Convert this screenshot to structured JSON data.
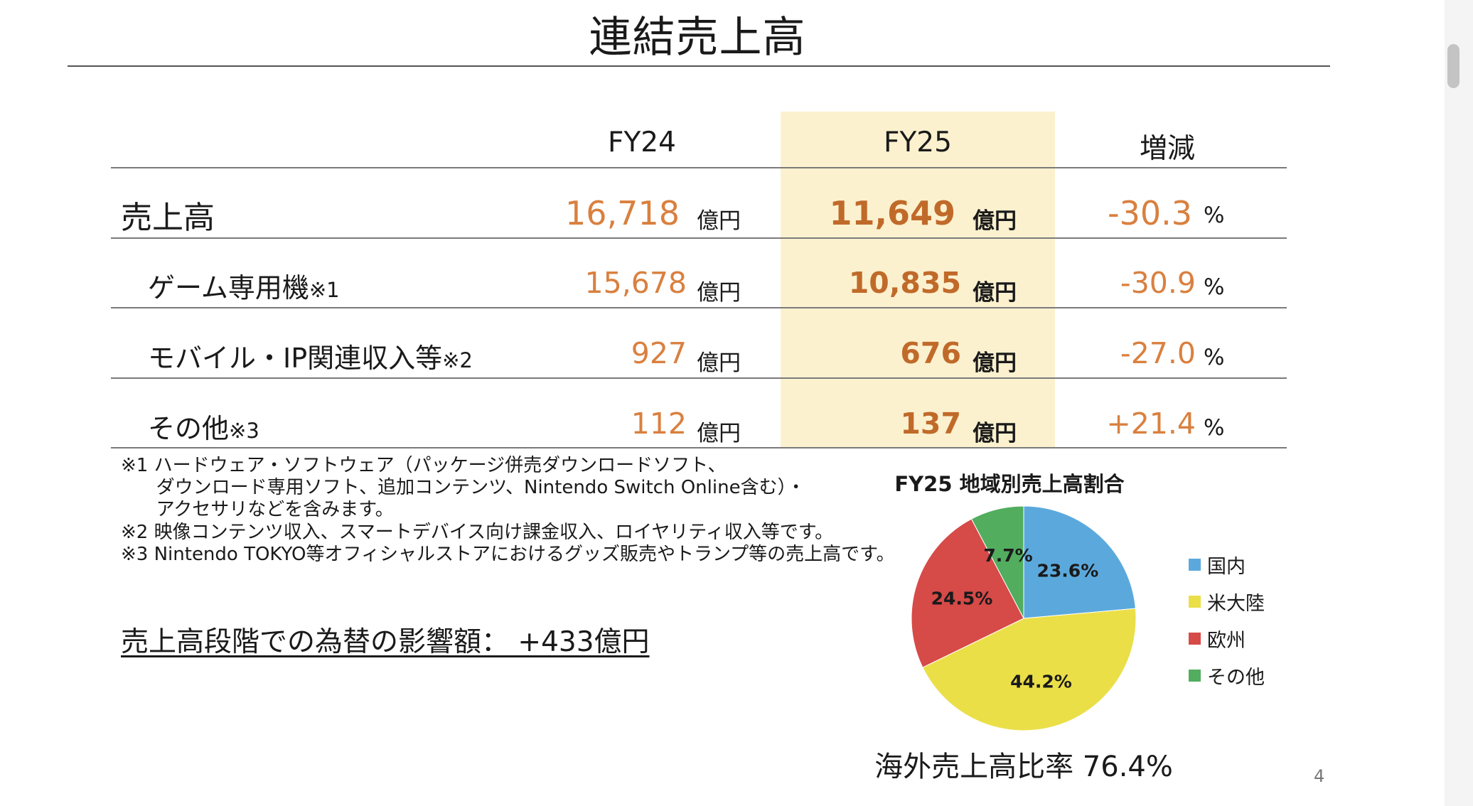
{
  "title": "連結売上高",
  "table": {
    "headers": {
      "fy24": "FY24",
      "fy25": "FY25",
      "change": "増減"
    },
    "rows": [
      {
        "label": "売上高",
        "note": "",
        "fy24": "16,718",
        "fy24_unit": "億円",
        "fy25": "11,649",
        "fy25_unit": "億円",
        "change": "-30.3",
        "change_unit": "%"
      },
      {
        "label": "ゲーム専用機",
        "note": "※1",
        "fy24": "15,678",
        "fy24_unit": "億円",
        "fy25": "10,835",
        "fy25_unit": "億円",
        "change": "-30.9",
        "change_unit": "%"
      },
      {
        "label": "モバイル・IP関連収入等",
        "note": "※2",
        "fy24": "927",
        "fy24_unit": "億円",
        "fy25": "676",
        "fy25_unit": "億円",
        "change": "-27.0",
        "change_unit": "%"
      },
      {
        "label": "その他",
        "note": "※3",
        "fy24": "112",
        "fy24_unit": "億円",
        "fy25": "137",
        "fy25_unit": "億円",
        "change": "+21.4",
        "change_unit": "%"
      }
    ]
  },
  "footnotes": [
    "※1 ハードウェア・ソフトウェア（パッケージ併売ダウンロードソフト、",
    "      ダウンロード専用ソフト、追加コンテンツ、Nintendo Switch Online含む）・",
    "      アクセサリなどを含みます。",
    "※2 映像コンテンツ収入、スマートデバイス向け課金収入、ロイヤリティ収入等です。",
    "※3 Nintendo TOKYO等オフィシャルストアにおけるグッズ販売やトランプ等の売上高です。"
  ],
  "fx_impact": "売上高段階での為替の影響額：  +433億円",
  "overseas_ratio": "海外売上高比率 76.4%",
  "page_number": "4",
  "colors": {
    "accent_orange": "#d9803f",
    "fy25_dark": "#c06a2a",
    "fy25_band": "#fcf1cf"
  },
  "chart_data": {
    "type": "pie",
    "title": "FY25 地域別売上高割合",
    "categories": [
      "国内",
      "米大陸",
      "欧州",
      "その他"
    ],
    "values": [
      23.6,
      44.2,
      24.5,
      7.7
    ],
    "labels": [
      "23.6%",
      "44.2%",
      "24.5%",
      "7.7%"
    ],
    "colors": [
      "#5ba9dc",
      "#ebdf48",
      "#d64a48",
      "#52ad5f"
    ],
    "legend_position": "right"
  }
}
